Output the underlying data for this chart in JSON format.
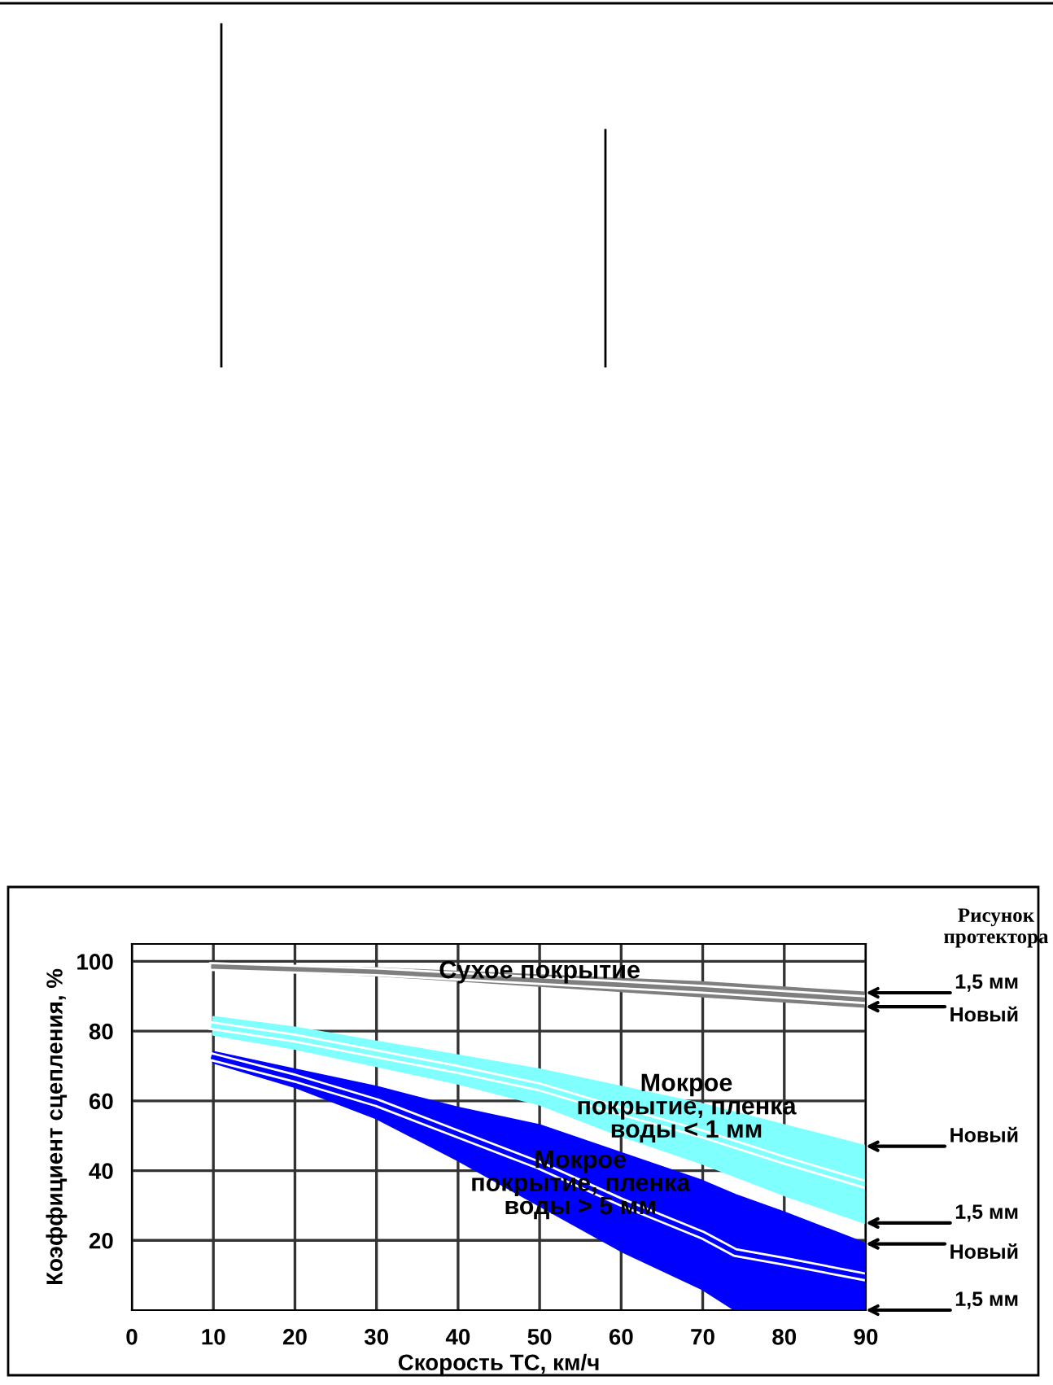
{
  "chart_data": {
    "type": "line",
    "xlabel": "Скорость ТС, км/ч",
    "ylabel": "Коэффициент сцепления, %",
    "xlim": [
      0,
      90
    ],
    "ylim": [
      0,
      105
    ],
    "xticks": [
      0,
      10,
      20,
      30,
      40,
      50,
      60,
      70,
      80,
      90
    ],
    "yticks": [
      20,
      40,
      60,
      80,
      100
    ],
    "grid": true,
    "series": [
      {
        "color": "#7f7f7f",
        "x": [
          10,
          30,
          50,
          70,
          90
        ],
        "values": [
          98.5,
          97,
          94.5,
          92,
          89
        ],
        "upper": [
          99,
          98,
          96,
          94,
          91
        ],
        "lower": [
          98,
          96,
          93,
          90,
          87
        ]
      },
      {
        "color": "#80ffff",
        "x": [
          10,
          20,
          30,
          40,
          50,
          60,
          70,
          80,
          90
        ],
        "values": [
          81.5,
          78,
          73.5,
          69,
          64,
          57,
          50.5,
          43,
          36
        ],
        "upper": [
          84,
          81,
          77,
          73,
          69,
          64,
          59,
          53,
          47
        ],
        "lower": [
          79,
          75,
          70,
          65,
          59,
          50,
          42,
          33,
          25
        ]
      },
      {
        "color": "#0000ff",
        "x": [
          10,
          20,
          30,
          40,
          50,
          60,
          70,
          74,
          80,
          90
        ],
        "values": [
          72.5,
          66.5,
          59.5,
          50.5,
          41.5,
          31,
          21.5,
          16.5,
          14,
          9.5
        ],
        "upper": [
          74,
          69,
          64,
          58,
          53,
          45,
          37,
          33,
          28,
          19
        ],
        "lower": [
          71,
          64,
          55,
          43,
          30,
          17,
          6,
          0,
          0,
          0
        ]
      }
    ],
    "annotations": [
      {
        "text": "Сухое покрытие",
        "x": 50,
        "y": 97
      },
      {
        "text": "Мокрое\nпокрытие, пленка\nводы < 1 мм",
        "x": 68,
        "y": 58
      },
      {
        "text": "Мокрое\nпокрытие, пленка\nводы > 5 мм",
        "x": 55,
        "y": 36
      },
      "Рисунок\nпротектора",
      {
        "text": "1,5 мм",
        "x": 90,
        "y": 91
      },
      {
        "text": "Новый",
        "x": 90,
        "y": 87
      },
      {
        "text": "Новый",
        "x": 90,
        "y": 47
      },
      {
        "text": "1,5 мм",
        "x": 90,
        "y": 25
      },
      {
        "text": "Новый",
        "x": 90,
        "y": 19
      },
      {
        "text": "1,5 мм",
        "x": 90,
        "y": 0
      }
    ]
  }
}
